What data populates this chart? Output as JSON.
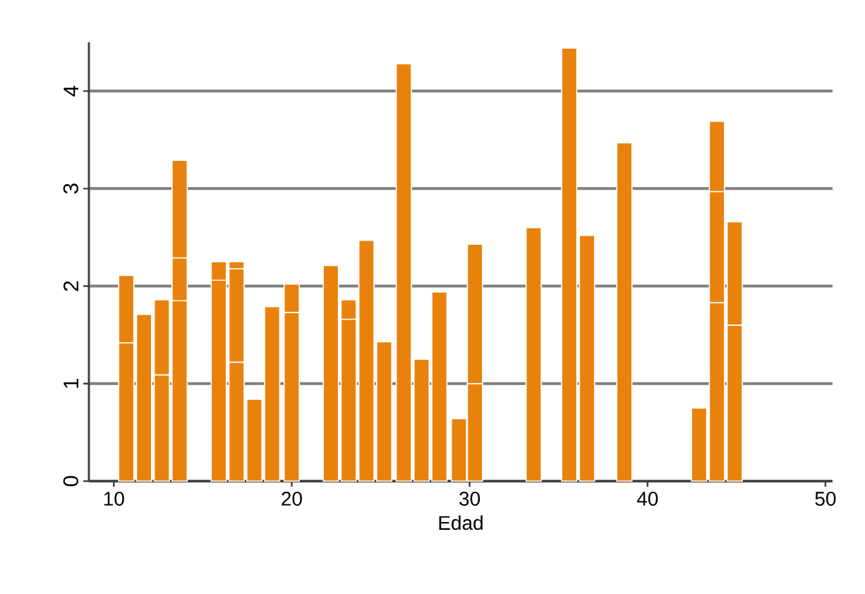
{
  "chart_data": {
    "type": "bar",
    "stacked": true,
    "xlabel": "Edad",
    "x": [
      10.7,
      11.7,
      12.7,
      13.7,
      15.9,
      16.9,
      17.9,
      18.9,
      20.0,
      22.2,
      23.2,
      24.2,
      25.2,
      26.3,
      27.3,
      28.3,
      29.4,
      30.3,
      33.6,
      35.6,
      36.6,
      38.7,
      42.9,
      43.9,
      44.9
    ],
    "series": [
      {
        "color": "#e8820c",
        "values": [
          1.42,
          1.71,
          1.09,
          1.85,
          2.06,
          1.22,
          0.84,
          1.79,
          1.73,
          2.21,
          1.66,
          2.47,
          1.43,
          4.28,
          1.25,
          1.94,
          0.64,
          1.0,
          2.6,
          4.44,
          2.52,
          3.47,
          0.75,
          1.83,
          1.6
        ]
      },
      {
        "color": "#e8820c",
        "values": [
          0.69,
          null,
          0.77,
          0.44,
          0.19,
          0.96,
          null,
          null,
          0.29,
          null,
          0.2,
          null,
          null,
          null,
          null,
          null,
          null,
          1.43,
          null,
          null,
          null,
          null,
          null,
          1.14,
          1.06
        ]
      },
      {
        "color": "#e8820c",
        "values": [
          null,
          null,
          null,
          1.0,
          null,
          0.07,
          null,
          null,
          null,
          null,
          null,
          null,
          null,
          null,
          null,
          null,
          null,
          null,
          null,
          null,
          null,
          null,
          null,
          0.72,
          null
        ]
      }
    ],
    "xlim": [
      8.6,
      50.4
    ],
    "ylim": [
      0,
      4.5
    ],
    "xticks": [
      10,
      20,
      30,
      40,
      50
    ],
    "yticks": [
      0,
      1,
      2,
      3,
      4
    ],
    "grid": "y"
  }
}
